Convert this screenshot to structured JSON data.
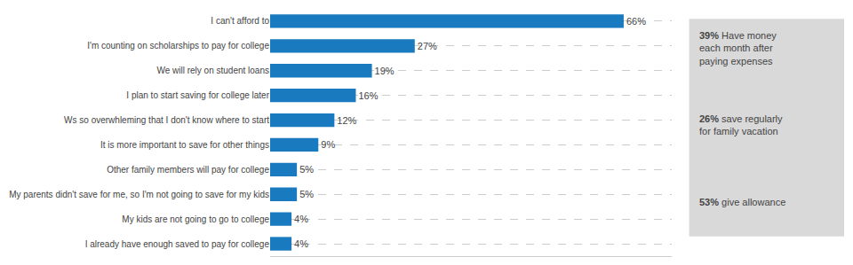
{
  "chart_data": {
    "type": "bar",
    "orientation": "horizontal",
    "categories": [
      "I already have enough saved to pay for college",
      "My kids are not going to go to college",
      "My parents didn't save for me, so I'm not going to save for my kids",
      "Other family members will pay for college",
      "It is more important to save for other things",
      "Ws so overwhleming that I don't know where to start",
      "I plan to start saving for college later",
      "We will rely on student loans",
      "I'm counting on scholarships to pay for college",
      "I can't afford to"
    ],
    "values": [
      4,
      4,
      5,
      5,
      9,
      12,
      16,
      19,
      27,
      66
    ],
    "value_labels": [
      "4%",
      "4%",
      "5%",
      "5%",
      "9%",
      "12%",
      "16%",
      "19%",
      "27%",
      "66%"
    ],
    "data_labels": true,
    "color": "#1a7abf",
    "xlim": [
      0,
      75
    ],
    "grid": true,
    "tick_labels": "y",
    "annotations": [
      {
        "pct": "39%",
        "text": " Have money\neach month after\npaying expenses"
      },
      {
        "pct": "26%",
        "text": " save regularly\nfor family vacation"
      },
      {
        "pct": "53%",
        "text": " give allowance"
      }
    ]
  }
}
